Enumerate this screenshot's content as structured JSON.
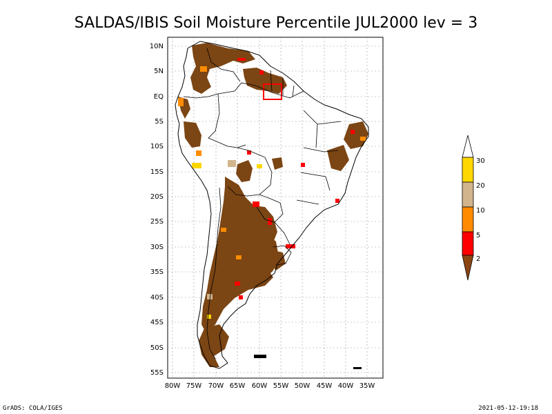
{
  "title": "SALDAS/IBIS Soil Moisture Percentile JUL2000 lev = 3",
  "lat_labels": [
    "10N",
    "5N",
    "EQ",
    "5S",
    "10S",
    "15S",
    "20S",
    "25S",
    "30S",
    "35S",
    "40S",
    "45S",
    "50S",
    "55S"
  ],
  "lon_labels": [
    "80W",
    "75W",
    "70W",
    "65W",
    "60W",
    "55W",
    "50W",
    "45W",
    "40W",
    "35W"
  ],
  "legend": {
    "labels": [
      "2",
      "5",
      "10",
      "20",
      "30"
    ],
    "colors": [
      "#8b4513",
      "#ff0000",
      "#ff8c00",
      "#d2b48c",
      "#ffd700",
      "#ffffff"
    ]
  },
  "footer": {
    "left": "GrADS: COLA/IGES",
    "right": "2021-05-12-19:18"
  },
  "colors": {
    "dry_brown": "#7b4514",
    "red": "#ff0000",
    "orange": "#ff8c00",
    "tan": "#d2b48c",
    "gold": "#ffd700",
    "grid": "#999999"
  }
}
